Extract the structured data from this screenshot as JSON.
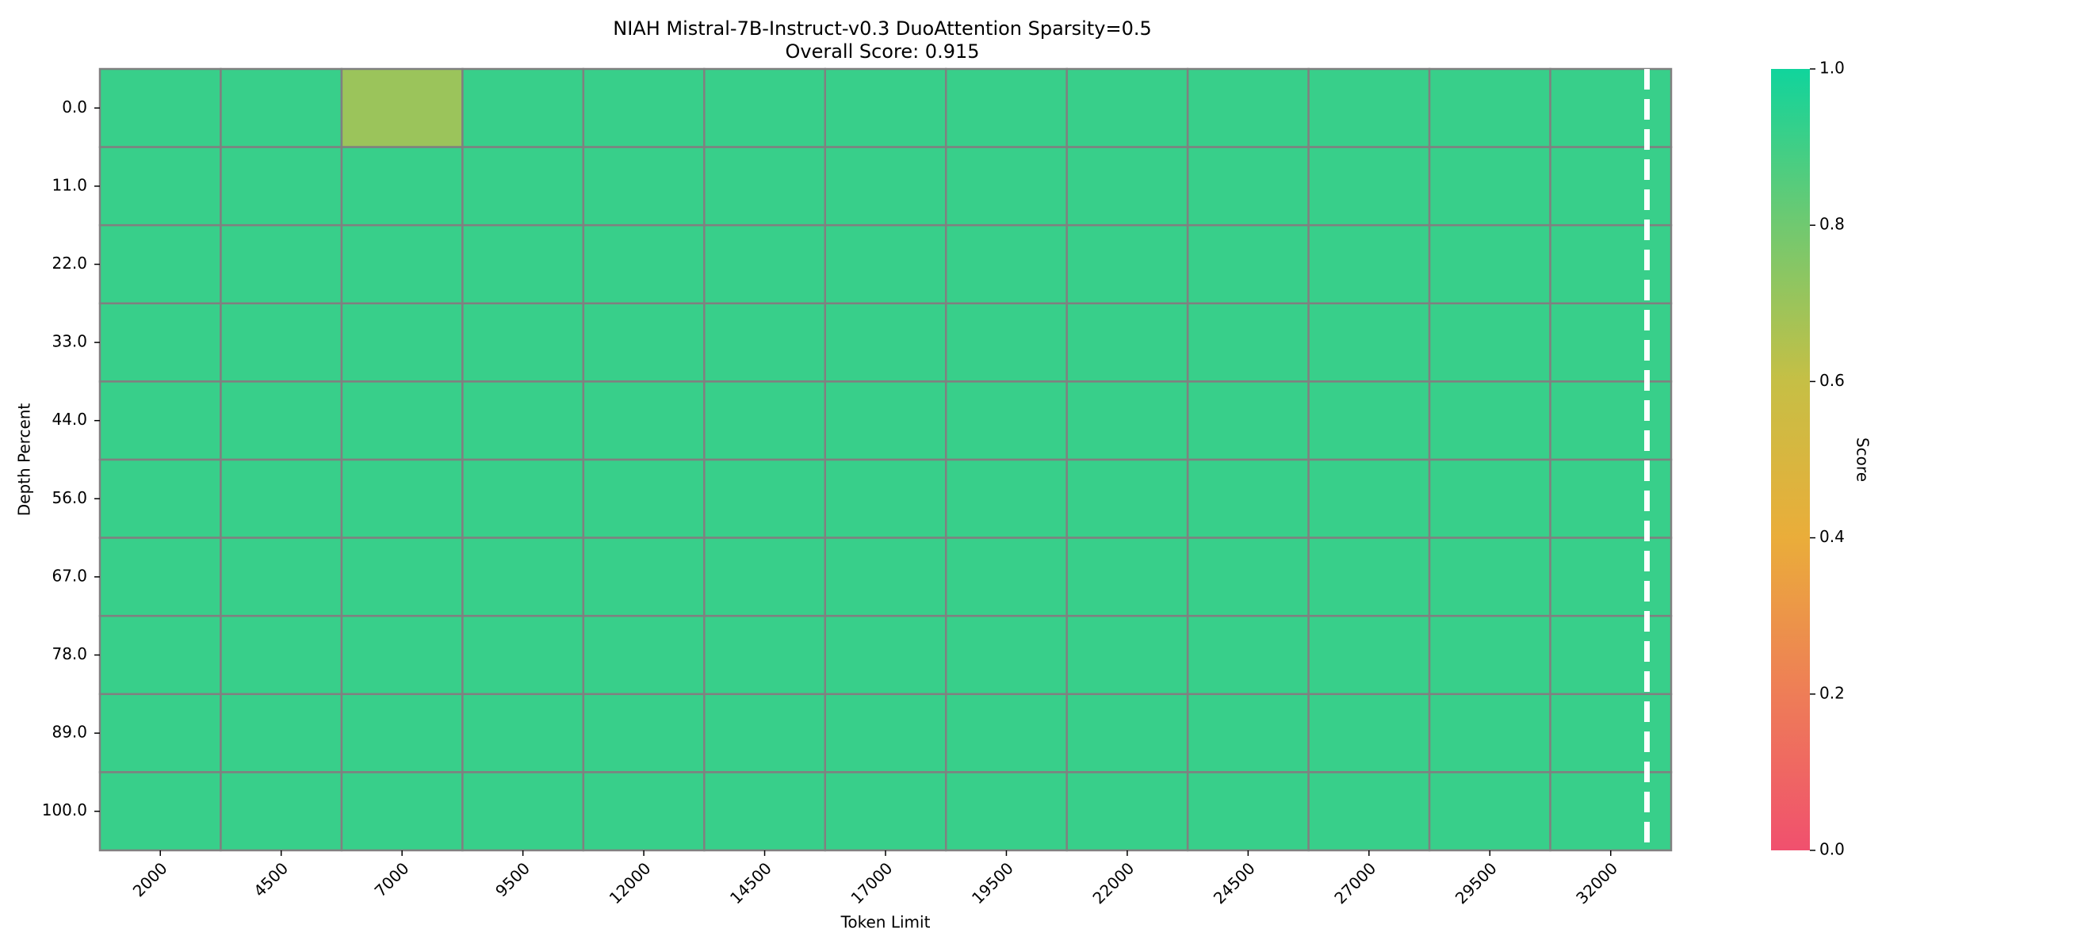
{
  "chart_data": {
    "type": "heatmap",
    "title": "NIAH Mistral-7B-Instruct-v0.3 DuoAttention Sparsity=0.5",
    "subtitle": "Overall Score: 0.915",
    "x_label": "Token Limit",
    "y_label": "Depth Percent",
    "colorbar_label": "Score",
    "x": [
      "2000",
      "4500",
      "7000",
      "9500",
      "12000",
      "14500",
      "17000",
      "19500",
      "22000",
      "24500",
      "27000",
      "29500",
      "32000"
    ],
    "y": [
      "0.0",
      "11.0",
      "22.0",
      "33.0",
      "44.0",
      "56.0",
      "67.0",
      "78.0",
      "89.0",
      "100.0"
    ],
    "values": [
      [
        0.917,
        0.917,
        0.7,
        0.917,
        0.917,
        0.917,
        0.917,
        0.917,
        0.917,
        0.917,
        0.917,
        0.917,
        0.917
      ],
      [
        0.917,
        0.917,
        0.917,
        0.917,
        0.917,
        0.917,
        0.917,
        0.917,
        0.917,
        0.917,
        0.917,
        0.917,
        0.917
      ],
      [
        0.917,
        0.917,
        0.917,
        0.917,
        0.917,
        0.917,
        0.917,
        0.917,
        0.917,
        0.917,
        0.917,
        0.917,
        0.917
      ],
      [
        0.917,
        0.917,
        0.917,
        0.917,
        0.917,
        0.917,
        0.917,
        0.917,
        0.917,
        0.917,
        0.917,
        0.917,
        0.917
      ],
      [
        0.917,
        0.917,
        0.917,
        0.917,
        0.917,
        0.917,
        0.917,
        0.917,
        0.917,
        0.917,
        0.917,
        0.917,
        0.917
      ],
      [
        0.917,
        0.917,
        0.917,
        0.917,
        0.917,
        0.917,
        0.917,
        0.917,
        0.917,
        0.917,
        0.917,
        0.917,
        0.917
      ],
      [
        0.917,
        0.917,
        0.917,
        0.917,
        0.917,
        0.917,
        0.917,
        0.917,
        0.917,
        0.917,
        0.917,
        0.917,
        0.917
      ],
      [
        0.917,
        0.917,
        0.917,
        0.917,
        0.917,
        0.917,
        0.917,
        0.917,
        0.917,
        0.917,
        0.917,
        0.917,
        0.917
      ],
      [
        0.917,
        0.917,
        0.917,
        0.917,
        0.917,
        0.917,
        0.917,
        0.917,
        0.917,
        0.917,
        0.917,
        0.917,
        0.917
      ],
      [
        0.917,
        0.917,
        0.917,
        0.917,
        0.917,
        0.917,
        0.917,
        0.917,
        0.917,
        0.917,
        0.917,
        0.917,
        0.917
      ]
    ],
    "colorscale": [
      "#f0506e",
      "#ee7d57",
      "#eaad3a",
      "#c6bf45",
      "#70c970",
      "#10d49c"
    ],
    "zlim": [
      0,
      1
    ],
    "zticks": [
      {
        "value": 0,
        "label": "0.0"
      },
      {
        "value": 0.2,
        "label": "0.2"
      },
      {
        "value": 0.4,
        "label": "0.4"
      },
      {
        "value": 0.6,
        "label": "0.6"
      },
      {
        "value": 0.8,
        "label": "0.8"
      },
      {
        "value": 1,
        "label": "1.0"
      }
    ],
    "cell_border_color": "#808080"
  }
}
